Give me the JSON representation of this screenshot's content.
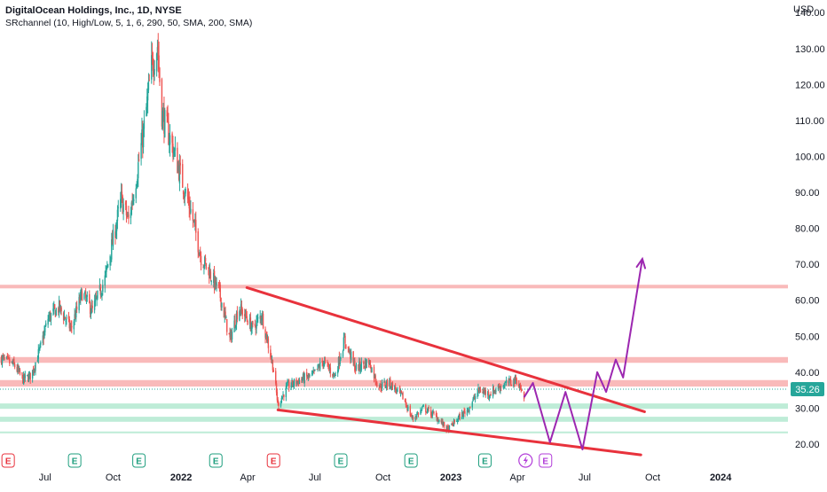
{
  "legend": {
    "title": "DigitalOcean Holdings, Inc., 1D, NYSE",
    "indicator": "SRchannel (10, High/Low, 5, 1, 6, 290, 50, SMA, 200, SMA)"
  },
  "colors": {
    "up": "#26a69a",
    "down": "#ef5350",
    "trendline": "#e8323c",
    "projection": "#9c27b0",
    "resistance_zone": "#f7a3a3",
    "support_zone": "#a8e6c9",
    "price_label_bg": "#26a69a"
  },
  "chart_data": {
    "type": "candlestick",
    "symbol": "DigitalOcean Holdings, Inc., 1D, NYSE",
    "currency_label": "USD",
    "y_axis_ticks": [
      "140.00",
      "130.00",
      "120.00",
      "110.00",
      "100.00",
      "90.00",
      "80.00",
      "70.00",
      "60.00",
      "50.00",
      "40.00",
      "30.00",
      "20.00"
    ],
    "y_tick_values": [
      140,
      130,
      120,
      110,
      100,
      90,
      80,
      70,
      60,
      50,
      40,
      30,
      20
    ],
    "ylim": [
      15.3,
      143.5
    ],
    "xlim": [
      "2021-05-01",
      "2024-04-01"
    ],
    "x_axis_ticks": [
      {
        "label": "Jul",
        "date": "2021-07-01",
        "bold": false
      },
      {
        "label": "Oct",
        "date": "2021-10-01",
        "bold": false
      },
      {
        "label": "2022",
        "date": "2022-01-01",
        "bold": true
      },
      {
        "label": "Apr",
        "date": "2022-04-01",
        "bold": false
      },
      {
        "label": "Jul",
        "date": "2022-07-01",
        "bold": false
      },
      {
        "label": "Oct",
        "date": "2022-10-01",
        "bold": false
      },
      {
        "label": "2023",
        "date": "2023-01-01",
        "bold": true
      },
      {
        "label": "Apr",
        "date": "2023-04-01",
        "bold": false
      },
      {
        "label": "Jul",
        "date": "2023-07-01",
        "bold": false
      },
      {
        "label": "Oct",
        "date": "2023-10-01",
        "bold": false
      },
      {
        "label": "2024",
        "date": "2024-01-01",
        "bold": true
      }
    ],
    "last_price": "35.26",
    "price_path": [
      [
        "2021-05-01",
        44
      ],
      [
        "2021-05-20",
        42
      ],
      [
        "2021-06-01",
        38
      ],
      [
        "2021-06-12",
        39
      ],
      [
        "2021-06-25",
        47
      ],
      [
        "2021-07-05",
        55
      ],
      [
        "2021-07-20",
        58
      ],
      [
        "2021-08-05",
        52
      ],
      [
        "2021-08-20",
        62
      ],
      [
        "2021-09-03",
        57
      ],
      [
        "2021-09-20",
        66
      ],
      [
        "2021-10-01",
        77
      ],
      [
        "2021-10-12",
        88
      ],
      [
        "2021-10-22",
        82
      ],
      [
        "2021-11-02",
        95
      ],
      [
        "2021-11-12",
        108
      ],
      [
        "2021-11-22",
        125
      ],
      [
        "2021-11-30",
        131
      ],
      [
        "2021-12-06",
        112
      ],
      [
        "2021-12-20",
        103
      ],
      [
        "2022-01-04",
        92
      ],
      [
        "2022-01-14",
        85
      ],
      [
        "2022-01-28",
        72
      ],
      [
        "2022-02-08",
        68
      ],
      [
        "2022-02-22",
        62
      ],
      [
        "2022-03-08",
        49
      ],
      [
        "2022-03-20",
        58
      ],
      [
        "2022-03-31",
        55
      ],
      [
        "2022-04-08",
        52
      ],
      [
        "2022-04-20",
        56
      ],
      [
        "2022-05-05",
        42
      ],
      [
        "2022-05-12",
        31
      ],
      [
        "2022-05-25",
        36
      ],
      [
        "2022-06-12",
        38
      ],
      [
        "2022-06-28",
        39
      ],
      [
        "2022-07-12",
        43
      ],
      [
        "2022-07-28",
        39
      ],
      [
        "2022-08-10",
        49
      ],
      [
        "2022-08-25",
        41
      ],
      [
        "2022-09-12",
        43
      ],
      [
        "2022-09-25",
        36
      ],
      [
        "2022-10-10",
        37
      ],
      [
        "2022-10-28",
        33
      ],
      [
        "2022-11-10",
        27
      ],
      [
        "2022-11-25",
        30
      ],
      [
        "2022-12-10",
        28
      ],
      [
        "2022-12-28",
        24
      ],
      [
        "2023-01-10",
        27
      ],
      [
        "2023-01-25",
        30
      ],
      [
        "2023-02-08",
        35
      ],
      [
        "2023-02-22",
        34
      ],
      [
        "2023-03-08",
        36
      ],
      [
        "2023-03-20",
        37
      ],
      [
        "2023-03-31",
        38
      ],
      [
        "2023-04-10",
        33
      ]
    ],
    "horizontal_zones": [
      {
        "name": "resistance",
        "from": 63.3,
        "to": 64.3
      },
      {
        "name": "resistance",
        "from": 42.6,
        "to": 44.2
      },
      {
        "name": "resistance",
        "from": 36.0,
        "to": 37.8
      },
      {
        "name": "support",
        "from": 29.8,
        "to": 31.3
      },
      {
        "name": "support",
        "from": 26.2,
        "to": 27.6
      },
      {
        "name": "support",
        "from": 23.0,
        "to": 23.5
      }
    ],
    "trendlines": [
      {
        "name": "upper",
        "from": [
          "2022-03-31",
          63.5
        ],
        "to": [
          "2023-09-20",
          29.0
        ]
      },
      {
        "name": "lower",
        "from": [
          "2022-05-12",
          29.5
        ],
        "to": [
          "2023-09-15",
          17.0
        ]
      }
    ],
    "projection_path": [
      [
        "2023-04-10",
        33
      ],
      [
        "2023-04-22",
        37
      ],
      [
        "2023-05-15",
        20.5
      ],
      [
        "2023-06-05",
        34.5
      ],
      [
        "2023-06-28",
        18.5
      ],
      [
        "2023-07-18",
        40
      ],
      [
        "2023-07-30",
        34.5
      ],
      [
        "2023-08-12",
        43.5
      ],
      [
        "2023-08-22",
        38.5
      ],
      [
        "2023-09-17",
        71.5
      ]
    ],
    "earnings_markers": [
      {
        "date": "2021-05-12",
        "label": "E",
        "color": "red"
      },
      {
        "date": "2021-08-10",
        "label": "E",
        "color": "green"
      },
      {
        "date": "2021-11-05",
        "label": "E",
        "color": "green"
      },
      {
        "date": "2022-02-17",
        "label": "E",
        "color": "green"
      },
      {
        "date": "2022-05-06",
        "label": "E",
        "color": "red"
      },
      {
        "date": "2022-08-05",
        "label": "E",
        "color": "green"
      },
      {
        "date": "2022-11-08",
        "label": "E",
        "color": "green"
      },
      {
        "date": "2023-02-16",
        "label": "E",
        "color": "green"
      },
      {
        "date": "2023-05-09",
        "label": "E",
        "color": "purple"
      }
    ],
    "dividend_marker": {
      "date": "2023-04-12",
      "icon": "lightning-icon"
    }
  }
}
